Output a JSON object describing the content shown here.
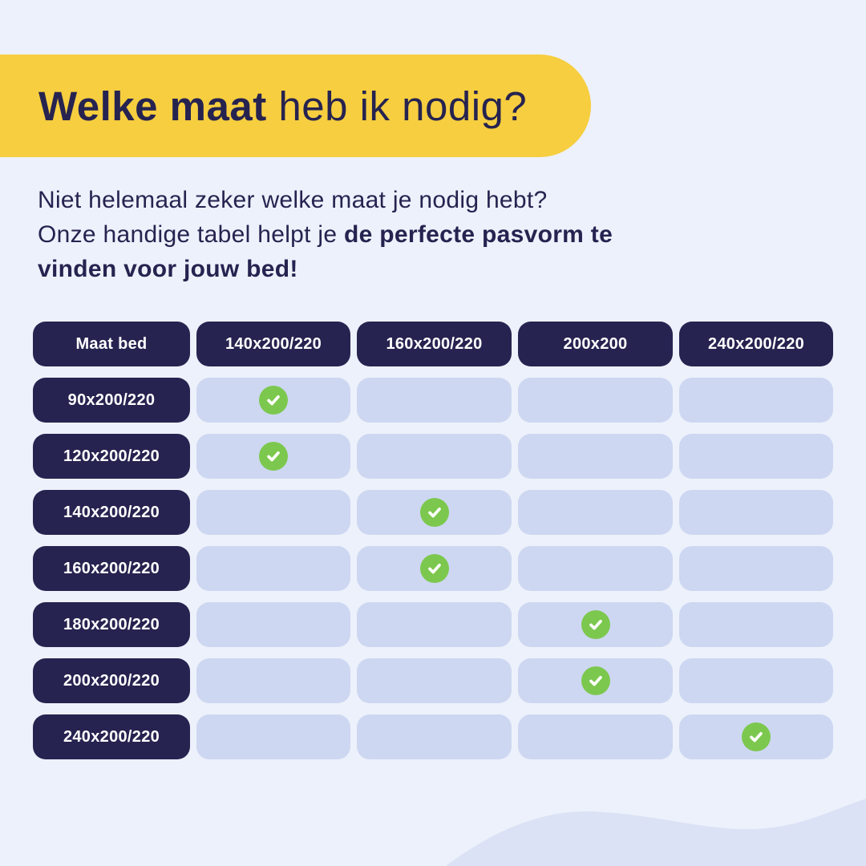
{
  "colors": {
    "background": "#EDF1FB",
    "banner_yellow": "#F6CE3F",
    "navy": "#262350",
    "cell_blue": "#CDD7F1",
    "check_green": "#7CC84E",
    "wave": "#DBE2F5",
    "header_text": "#FFFFFF"
  },
  "header": {
    "title_bold": "Welke maat",
    "title_rest": " heb ik nodig?"
  },
  "intro": {
    "line1": "Niet helemaal zeker welke maat je nodig hebt?",
    "line2_regular": "Onze handige tabel helpt je",
    "line2_bold": " de perfecte pasvorm te",
    "line3_bold": "vinden voor jouw bed!"
  },
  "chart_data": {
    "type": "table",
    "title": "Welke maat heb ik nodig?",
    "corner_label": "Maat bed",
    "columns": [
      "140x200/220",
      "160x200/220",
      "200x200",
      "240x200/220"
    ],
    "rows": [
      {
        "label": "90x200/220",
        "checks": [
          true,
          false,
          false,
          false
        ]
      },
      {
        "label": "120x200/220",
        "checks": [
          true,
          false,
          false,
          false
        ]
      },
      {
        "label": "140x200/220",
        "checks": [
          false,
          true,
          false,
          false
        ]
      },
      {
        "label": "160x200/220",
        "checks": [
          false,
          true,
          false,
          false
        ]
      },
      {
        "label": "180x200/220",
        "checks": [
          false,
          false,
          true,
          false
        ]
      },
      {
        "label": "200x200/220",
        "checks": [
          false,
          false,
          true,
          false
        ]
      },
      {
        "label": "240x200/220",
        "checks": [
          false,
          false,
          false,
          true
        ]
      }
    ],
    "check_icon": "checkmark-in-green-circle",
    "legend_position": "none",
    "grid": false
  }
}
